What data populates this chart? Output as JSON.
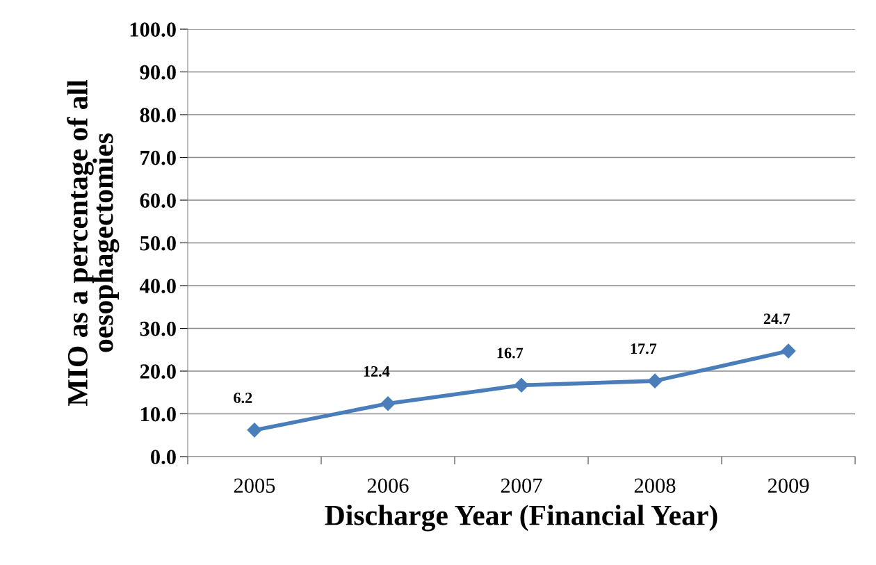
{
  "chart_data": {
    "type": "line",
    "xlabel": "Discharge Year (Financial Year)",
    "ylabel": "MIO as a percentage of all oesophagectomies",
    "categories": [
      "2005",
      "2006",
      "2007",
      "2008",
      "2009"
    ],
    "series": [
      {
        "color": "#4a7ebb",
        "values": [
          6.2,
          12.4,
          16.7,
          17.7,
          24.7
        ]
      }
    ],
    "ylim": [
      0,
      100
    ],
    "yticks": [
      {
        "value": 0,
        "label": "0.0"
      },
      {
        "value": 10,
        "label": "10.0"
      },
      {
        "value": 20,
        "label": "20.0"
      },
      {
        "value": 30,
        "label": "30.0"
      },
      {
        "value": 40,
        "label": "40.0"
      },
      {
        "value": 50,
        "label": "50.0"
      },
      {
        "value": 60,
        "label": "60.0"
      },
      {
        "value": 70,
        "label": "70.0"
      },
      {
        "value": 80,
        "label": "80.0"
      },
      {
        "value": 90,
        "label": "90.0"
      },
      {
        "value": 100,
        "label": "100.0"
      }
    ],
    "grid": "y",
    "marker": "diamond",
    "line_style": "solid",
    "data_labels": true
  }
}
